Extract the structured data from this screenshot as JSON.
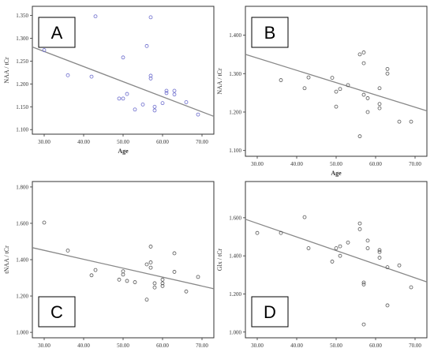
{
  "figure": {
    "colors": {
      "frame": "#333333",
      "regression": "#888888",
      "point_a": "#6a6acc",
      "point_other": "#555555",
      "label_box": "#000000"
    }
  },
  "chart_data": [
    {
      "type": "scatter",
      "panel_label": "A",
      "xlabel": "Age",
      "ylabel": "NAA / tCr",
      "xlim": [
        27,
        73
      ],
      "ylim": [
        1.09,
        1.37
      ],
      "xticks": [
        "30.00",
        "40.00",
        "50.00",
        "60.00",
        "70.00"
      ],
      "xtick_values": [
        30,
        40,
        50,
        60,
        70
      ],
      "yticks": [
        "1.100",
        "1.150",
        "1.200",
        "1.250",
        "1.300",
        "1.350"
      ],
      "ytick_values": [
        1.1,
        1.15,
        1.2,
        1.25,
        1.3,
        1.35
      ],
      "regression_line": {
        "x": [
          27,
          73
        ],
        "y": [
          1.281,
          1.129
        ]
      },
      "grid": false,
      "points": [
        [
          30,
          1.274
        ],
        [
          36,
          1.219
        ],
        [
          42,
          1.216
        ],
        [
          43,
          1.348
        ],
        [
          49,
          1.168
        ],
        [
          50,
          1.168
        ],
        [
          50,
          1.258
        ],
        [
          51,
          1.178
        ],
        [
          53,
          1.144
        ],
        [
          55,
          1.155
        ],
        [
          56,
          1.283
        ],
        [
          57,
          1.346
        ],
        [
          57,
          1.218
        ],
        [
          57,
          1.212
        ],
        [
          58,
          1.15
        ],
        [
          58,
          1.142
        ],
        [
          60,
          1.158
        ],
        [
          61,
          1.185
        ],
        [
          61,
          1.18
        ],
        [
          63,
          1.185
        ],
        [
          63,
          1.177
        ],
        [
          66,
          1.16
        ],
        [
          69,
          1.133
        ]
      ]
    },
    {
      "type": "scatter",
      "panel_label": "B",
      "xlabel": "Age",
      "ylabel": "NAA / tCr",
      "xlim": [
        27,
        73
      ],
      "ylim": [
        1.085,
        1.475
      ],
      "xticks": [
        "30.00",
        "40.00",
        "50.00",
        "60.00",
        "70.00"
      ],
      "xtick_values": [
        30,
        40,
        50,
        60,
        70
      ],
      "yticks": [
        "1.100",
        "1.200",
        "1.300",
        "1.400"
      ],
      "ytick_values": [
        1.1,
        1.2,
        1.3,
        1.4
      ],
      "regression_line": {
        "x": [
          27,
          73
        ],
        "y": [
          1.35,
          1.203
        ]
      },
      "grid": false,
      "points": [
        [
          36,
          1.283
        ],
        [
          42,
          1.262
        ],
        [
          43,
          1.29
        ],
        [
          49,
          1.289
        ],
        [
          50,
          1.253
        ],
        [
          50,
          1.214
        ],
        [
          51,
          1.26
        ],
        [
          53,
          1.27
        ],
        [
          56,
          1.137
        ],
        [
          56,
          1.35
        ],
        [
          57,
          1.355
        ],
        [
          57,
          1.327
        ],
        [
          57,
          1.245
        ],
        [
          58,
          1.2
        ],
        [
          58,
          1.236
        ],
        [
          61,
          1.262
        ],
        [
          61,
          1.221
        ],
        [
          61,
          1.21
        ],
        [
          63,
          1.312
        ],
        [
          63,
          1.3
        ],
        [
          66,
          1.175
        ],
        [
          69,
          1.175
        ]
      ]
    },
    {
      "type": "scatter",
      "panel_label": "C",
      "xlabel": "Age",
      "ylabel": "tNAA / tCr",
      "xlim": [
        27,
        73
      ],
      "ylim": [
        0.97,
        1.83
      ],
      "xticks": [
        "30.00",
        "40.00",
        "50.00",
        "60.00",
        "70.00"
      ],
      "xtick_values": [
        30,
        40,
        50,
        60,
        70
      ],
      "yticks": [
        "1.000",
        "1.200",
        "1.400",
        "1.600",
        "1.800"
      ],
      "ytick_values": [
        1.0,
        1.2,
        1.4,
        1.6,
        1.8
      ],
      "regression_line": {
        "x": [
          27,
          73
        ],
        "y": [
          1.466,
          1.24
        ]
      },
      "grid": false,
      "points": [
        [
          30,
          1.604
        ],
        [
          36,
          1.45
        ],
        [
          42,
          1.314
        ],
        [
          43,
          1.343
        ],
        [
          49,
          1.29
        ],
        [
          50,
          1.336
        ],
        [
          50,
          1.318
        ],
        [
          51,
          1.283
        ],
        [
          53,
          1.276
        ],
        [
          56,
          1.18
        ],
        [
          56,
          1.374
        ],
        [
          57,
          1.472
        ],
        [
          57,
          1.385
        ],
        [
          57,
          1.356
        ],
        [
          58,
          1.27
        ],
        [
          58,
          1.247
        ],
        [
          60,
          1.29
        ],
        [
          60,
          1.27
        ],
        [
          60,
          1.255
        ],
        [
          63,
          1.435
        ],
        [
          63,
          1.333
        ],
        [
          66,
          1.225
        ],
        [
          69,
          1.305
        ]
      ]
    },
    {
      "type": "scatter",
      "panel_label": "D",
      "xlabel": "Age",
      "ylabel": "Glx / tCr",
      "xlim": [
        27,
        73
      ],
      "ylim": [
        0.97,
        1.79
      ],
      "xticks": [
        "30.00",
        "40.00",
        "50.00",
        "60.00",
        "70.00"
      ],
      "xtick_values": [
        30,
        40,
        50,
        60,
        70
      ],
      "yticks": [
        "1.000",
        "1.200",
        "1.400",
        "1.600"
      ],
      "ytick_values": [
        1.0,
        1.2,
        1.4,
        1.6
      ],
      "regression_line": {
        "x": [
          27,
          73
        ],
        "y": [
          1.592,
          1.263
        ]
      },
      "grid": false,
      "points": [
        [
          30,
          1.52
        ],
        [
          36,
          1.52
        ],
        [
          42,
          1.603
        ],
        [
          43,
          1.44
        ],
        [
          49,
          1.37
        ],
        [
          50,
          1.44
        ],
        [
          51,
          1.45
        ],
        [
          51,
          1.4
        ],
        [
          53,
          1.47
        ],
        [
          56,
          1.54
        ],
        [
          56,
          1.57
        ],
        [
          57,
          1.26
        ],
        [
          57,
          1.25
        ],
        [
          57,
          1.04
        ],
        [
          58,
          1.44
        ],
        [
          58,
          1.48
        ],
        [
          61,
          1.43
        ],
        [
          61,
          1.42
        ],
        [
          61,
          1.39
        ],
        [
          63,
          1.34
        ],
        [
          63,
          1.14
        ],
        [
          66,
          1.35
        ],
        [
          69,
          1.235
        ]
      ]
    }
  ]
}
